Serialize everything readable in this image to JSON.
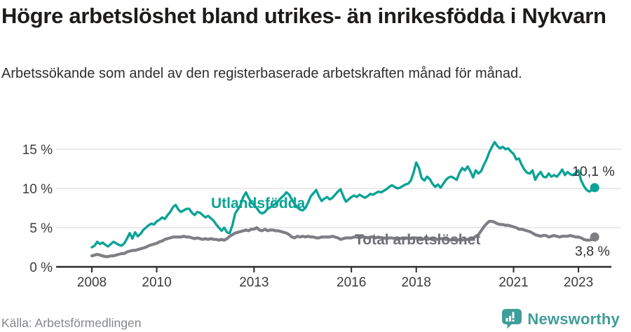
{
  "header": {
    "title": "Högre arbetslöshet bland utrikes- än inrikesfödda i Nykvarn",
    "subtitle": "Arbetssökande som andel av den registerbaserade arbetskraften månad för månad."
  },
  "footer": {
    "source": "Källa: Arbetsförmedlingen",
    "brand": "Newsworthy"
  },
  "colors": {
    "accent_teal": "#0aa396",
    "series_gray": "#7e7f85",
    "logo_teal": "#3f9e99",
    "grid": "#e3e4e6",
    "axis": "#2b2b2b"
  },
  "chart_data": {
    "type": "line",
    "title": "Högre arbetslöshet bland utrikes- än inrikesfödda i Nykvarn",
    "subtitle": "Arbetssökande som andel av den registerbaserade arbetskraften månad för månad.",
    "xlabel": "",
    "ylabel": "%",
    "x_range": [
      2008.0,
      2023.5
    ],
    "ylim": [
      0,
      16.5
    ],
    "grid": "horizontal",
    "xticks": [
      2008,
      2010,
      2013,
      2016,
      2018,
      2021,
      2023
    ],
    "xtick_labels": [
      "2008",
      "2010",
      "2013",
      "2016",
      "2018",
      "2021",
      "2023"
    ],
    "yticks_top_to_bottom": [
      15,
      10,
      5,
      0
    ],
    "ytick_labels": [
      "15 %",
      "10 %",
      "5 %",
      "0 %"
    ],
    "legend_position": "inline-labels-on-chart",
    "frequency": "monthly",
    "series": [
      {
        "name": "Utlandsfödda",
        "color": "#0aa396",
        "label_color": "#0aa396",
        "end_label": "10,1 %",
        "end_value": 10.1,
        "start_year": 2008,
        "values": [
          2.5,
          2.7,
          3.2,
          2.9,
          3.1,
          2.8,
          2.6,
          2.9,
          3.2,
          3.0,
          2.8,
          2.7,
          3.0,
          3.6,
          4.3,
          3.6,
          4.4,
          3.9,
          4.2,
          4.7,
          5.0,
          5.3,
          5.5,
          5.4,
          5.8,
          6.0,
          6.3,
          6.1,
          6.6,
          7.0,
          7.6,
          7.9,
          7.3,
          7.0,
          7.2,
          7.4,
          7.4,
          6.9,
          6.6,
          7.0,
          6.9,
          6.6,
          6.3,
          6.5,
          6.2,
          5.9,
          5.4,
          5.0,
          4.6,
          5.0,
          4.4,
          4.3,
          5.3,
          6.8,
          7.3,
          7.9,
          8.9,
          9.5,
          8.8,
          8.2,
          7.9,
          7.5,
          7.0,
          6.8,
          7.0,
          7.4,
          7.6,
          7.8,
          8.1,
          8.4,
          8.8,
          9.1,
          9.5,
          9.2,
          8.6,
          8.0,
          7.6,
          7.3,
          7.2,
          7.5,
          8.2,
          9.0,
          9.4,
          9.8,
          9.0,
          8.4,
          8.7,
          8.9,
          8.6,
          8.8,
          9.2,
          9.6,
          9.9,
          9.0,
          8.3,
          8.6,
          8.9,
          9.1,
          8.9,
          9.2,
          9.0,
          8.8,
          9.0,
          9.3,
          9.2,
          9.4,
          9.6,
          9.5,
          9.7,
          9.9,
          10.2,
          10.4,
          10.2,
          10.0,
          10.1,
          10.3,
          10.5,
          10.6,
          11.0,
          12.0,
          13.3,
          12.6,
          11.3,
          11.0,
          11.5,
          11.2,
          10.6,
          10.2,
          10.5,
          10.1,
          10.6,
          11.1,
          11.4,
          11.5,
          11.3,
          11.1,
          12.0,
          12.6,
          12.3,
          12.8,
          12.2,
          11.4,
          12.3,
          11.9,
          12.2,
          13.0,
          13.7,
          14.6,
          15.3,
          15.9,
          15.4,
          15.1,
          15.3,
          15.0,
          15.1,
          14.7,
          14.4,
          13.7,
          13.8,
          13.0,
          12.4,
          12.0,
          11.9,
          12.3,
          11.1,
          11.7,
          12.1,
          11.5,
          11.4,
          11.9,
          11.5,
          11.7,
          11.5,
          11.9,
          12.4,
          11.7,
          12.1,
          11.8,
          11.7,
          12.0,
          12.3,
          11.0,
          10.3,
          9.8,
          9.6,
          9.8,
          10.1
        ]
      },
      {
        "name": "Total arbetslöshet",
        "color": "#7e7f85",
        "label_color": "#707177",
        "end_label": "3,8 %",
        "end_value": 3.8,
        "start_year": 2008,
        "values": [
          1.4,
          1.5,
          1.6,
          1.5,
          1.4,
          1.3,
          1.3,
          1.4,
          1.4,
          1.5,
          1.6,
          1.7,
          1.7,
          1.9,
          2.0,
          2.1,
          2.1,
          2.2,
          2.3,
          2.4,
          2.5,
          2.7,
          2.8,
          2.9,
          3.0,
          3.2,
          3.3,
          3.5,
          3.6,
          3.7,
          3.8,
          3.8,
          3.8,
          3.8,
          3.9,
          3.8,
          3.8,
          3.7,
          3.6,
          3.7,
          3.6,
          3.5,
          3.6,
          3.5,
          3.6,
          3.5,
          3.5,
          3.4,
          3.5,
          3.4,
          3.6,
          3.9,
          4.1,
          4.3,
          4.4,
          4.5,
          4.6,
          4.7,
          4.6,
          4.8,
          4.8,
          5.0,
          4.7,
          4.6,
          4.8,
          4.6,
          4.7,
          4.7,
          4.6,
          4.6,
          4.5,
          4.4,
          4.3,
          4.1,
          3.8,
          3.7,
          3.9,
          3.8,
          3.9,
          3.8,
          3.9,
          3.8,
          3.8,
          3.7,
          3.7,
          3.8,
          3.8,
          3.8,
          3.8,
          3.9,
          3.8,
          3.7,
          3.5,
          3.6,
          3.7,
          3.7,
          3.7,
          3.8,
          3.8,
          3.7,
          3.8,
          3.8,
          3.7,
          3.8,
          3.8,
          3.7,
          3.8,
          3.7,
          3.7,
          3.6,
          3.7,
          3.7,
          3.6,
          3.7,
          3.6,
          3.7,
          3.6,
          3.7,
          3.6,
          3.7,
          3.7,
          3.6,
          3.5,
          3.6,
          3.5,
          3.6,
          3.5,
          3.6,
          3.5,
          3.6,
          3.6,
          3.5,
          3.5,
          3.4,
          3.5,
          3.4,
          3.5,
          3.4,
          3.5,
          3.5,
          3.6,
          3.6,
          3.9,
          4.1,
          4.6,
          5.1,
          5.5,
          5.8,
          5.8,
          5.7,
          5.5,
          5.4,
          5.4,
          5.3,
          5.3,
          5.2,
          5.1,
          5.0,
          4.8,
          4.8,
          4.7,
          4.6,
          4.5,
          4.3,
          4.1,
          4.0,
          3.9,
          4.0,
          4.0,
          3.8,
          3.9,
          4.0,
          3.9,
          3.8,
          3.9,
          3.9,
          3.9,
          4.0,
          3.9,
          3.8,
          3.8,
          3.7,
          3.5,
          3.4,
          3.4,
          3.5,
          3.8
        ]
      }
    ]
  }
}
